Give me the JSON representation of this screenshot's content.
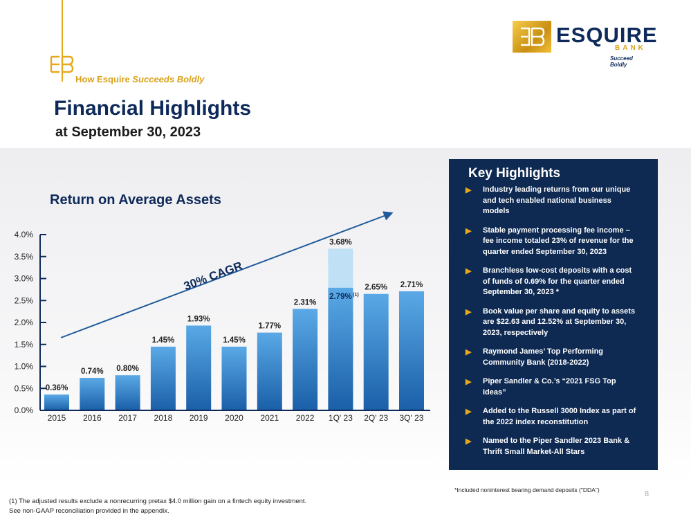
{
  "header": {
    "kicker_prefix": "How Esquire",
    "kicker_emphasis": "Succeeds Boldly",
    "title": "Financial Highlights",
    "subtitle": "at September 30, 2023"
  },
  "logo": {
    "mark": "EB",
    "name": "ESQUIRE",
    "sub": "BANK",
    "tagline": "Succeed Boldly"
  },
  "chart_data": {
    "type": "bar",
    "title": "Return on Average Assets",
    "categories": [
      "2015",
      "2016",
      "2017",
      "2018",
      "2019",
      "2020",
      "2021",
      "2022",
      "1Q' 23",
      "2Q' 23",
      "3Q' 23"
    ],
    "values": [
      0.36,
      0.74,
      0.8,
      1.45,
      1.93,
      1.45,
      1.77,
      2.31,
      2.79,
      2.65,
      2.71
    ],
    "value_labels": [
      "0.36%",
      "0.74%",
      "0.80%",
      "1.45%",
      "1.93%",
      "1.45%",
      "1.77%",
      "2.31%",
      "2.79%",
      "2.65%",
      "2.71%"
    ],
    "unadjusted": {
      "category": "1Q' 23",
      "value": 3.68,
      "label": "3.68%"
    },
    "adjusted_marker": "(1)",
    "yticks": [
      "0.0%",
      "0.5%",
      "1.0%",
      "1.5%",
      "2.0%",
      "2.5%",
      "3.0%",
      "3.5%",
      "4.0%"
    ],
    "ylim": [
      0,
      4.0
    ],
    "trend_label": "30% CAGR",
    "colors": {
      "bar_top": "#5aa9e6",
      "bar_bottom": "#1a5fa8",
      "unadjusted": "#bfe0f5",
      "arrow": "#1f5a9a",
      "axis": "#0e2a5a"
    }
  },
  "key_highlights": {
    "title": "Key Highlights",
    "items": [
      "Industry leading returns from our unique and tech enabled national business models",
      "Stable payment processing fee income – fee income totaled 23% of  revenue for the quarter ended September 30, 2023",
      "Branchless low-cost deposits with a cost of funds of 0.69% for the quarter ended September 30, 2023 *",
      "Book value per share and equity to assets are $22.63 and 12.52% at September 30, 2023, respectively",
      "Raymond James’ Top Performing Community Bank (2018-2022)",
      "Piper Sandler & Co.’s “2021 FSG Top Ideas”",
      "Added to the Russell 3000 Index as part of the 2022 index reconstitution",
      "Named to the Piper Sandler 2023 Bank & Thrift Small Market-All Stars"
    ]
  },
  "footnotes": {
    "dda": "*Included noninterest bearing demand deposits (\"DDA\")",
    "adjusted_1": "(1) The adjusted results exclude a nonrecurring pretax $4.0 million gain on a fintech equity investment.",
    "adjusted_2": "See non-GAAP reconciliation provided in the appendix.",
    "page_number": "8"
  }
}
